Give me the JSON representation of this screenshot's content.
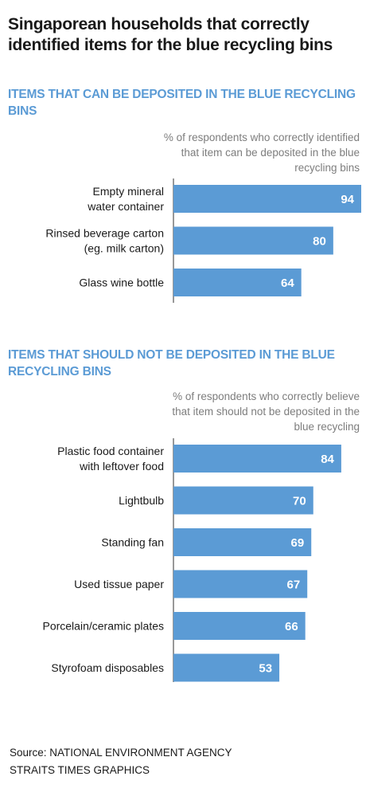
{
  "title": "Singaporean households that correctly identified items for the blue recycling bins",
  "colors": {
    "accent": "#5b9bd5",
    "bar": "#5b9bd5",
    "axis": "#777777",
    "note": "#7d7d7d"
  },
  "chart_data": [
    {
      "type": "bar",
      "orientation": "horizontal",
      "title": "ITEMS THAT CAN BE DEPOSITED IN THE BLUE RECYCLING BINS",
      "note": "% of respondents who correctly identified that item can be deposited in the blue recycling bins",
      "categories": [
        [
          "Empty mineral",
          "water container"
        ],
        [
          "Rinsed beverage carton",
          "(eg. milk carton)"
        ],
        [
          "Glass wine bottle"
        ]
      ],
      "values": [
        94,
        80,
        64
      ],
      "xlim": [
        0,
        100
      ]
    },
    {
      "type": "bar",
      "orientation": "horizontal",
      "title": "ITEMS THAT SHOULD NOT BE DEPOSITED IN THE BLUE RECYCLING BINS",
      "note": "% of respondents who correctly believe that item should not be deposited in the blue recycling",
      "categories": [
        [
          "Plastic food container",
          "with leftover food"
        ],
        [
          "Lightbulb"
        ],
        [
          "Standing fan"
        ],
        [
          "Used tissue paper"
        ],
        [
          "Porcelain/ceramic plates"
        ],
        [
          "Styrofoam disposables"
        ]
      ],
      "values": [
        84,
        70,
        69,
        67,
        66,
        53
      ],
      "xlim": [
        0,
        100
      ]
    }
  ],
  "source": {
    "line1": "Source: NATIONAL ENVIRONMENT AGENCY",
    "line2": "STRAITS TIMES GRAPHICS"
  }
}
